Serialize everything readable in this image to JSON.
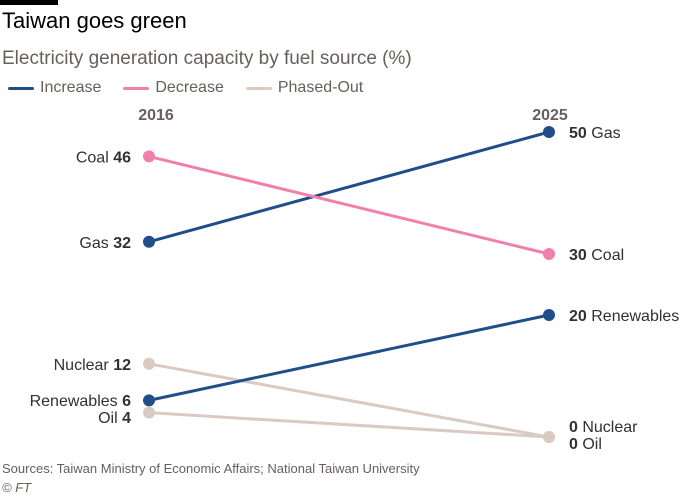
{
  "header": {
    "title": "Taiwan goes green",
    "subtitle": "Electricity generation capacity by fuel source (%)"
  },
  "legend": [
    {
      "label": "Increase",
      "color": "#1f4e89"
    },
    {
      "label": "Decrease",
      "color": "#f17fac"
    },
    {
      "label": "Phased-Out",
      "color": "#d9cbc2"
    }
  ],
  "footer": {
    "source": "Sources: Taiwan Ministry of Economic Affairs; National Taiwan University",
    "credit": "© FT"
  },
  "chart_data": {
    "type": "line",
    "chart_style": "slope",
    "x": [
      "2016",
      "2025"
    ],
    "ylim": [
      0,
      50
    ],
    "grid": false,
    "legend_position": "top-left",
    "series": [
      {
        "name": "Gas",
        "values": [
          32,
          50
        ],
        "category": "Increase",
        "color": "#1f4e89"
      },
      {
        "name": "Coal",
        "values": [
          46,
          30
        ],
        "category": "Decrease",
        "color": "#f17fac"
      },
      {
        "name": "Renewables",
        "values": [
          6,
          20
        ],
        "category": "Increase",
        "color": "#1f4e89"
      },
      {
        "name": "Nuclear",
        "values": [
          12,
          0
        ],
        "category": "Phased-Out",
        "color": "#d9cbc2"
      },
      {
        "name": "Oil",
        "values": [
          4,
          0
        ],
        "category": "Phased-Out",
        "color": "#d9cbc2"
      }
    ]
  }
}
